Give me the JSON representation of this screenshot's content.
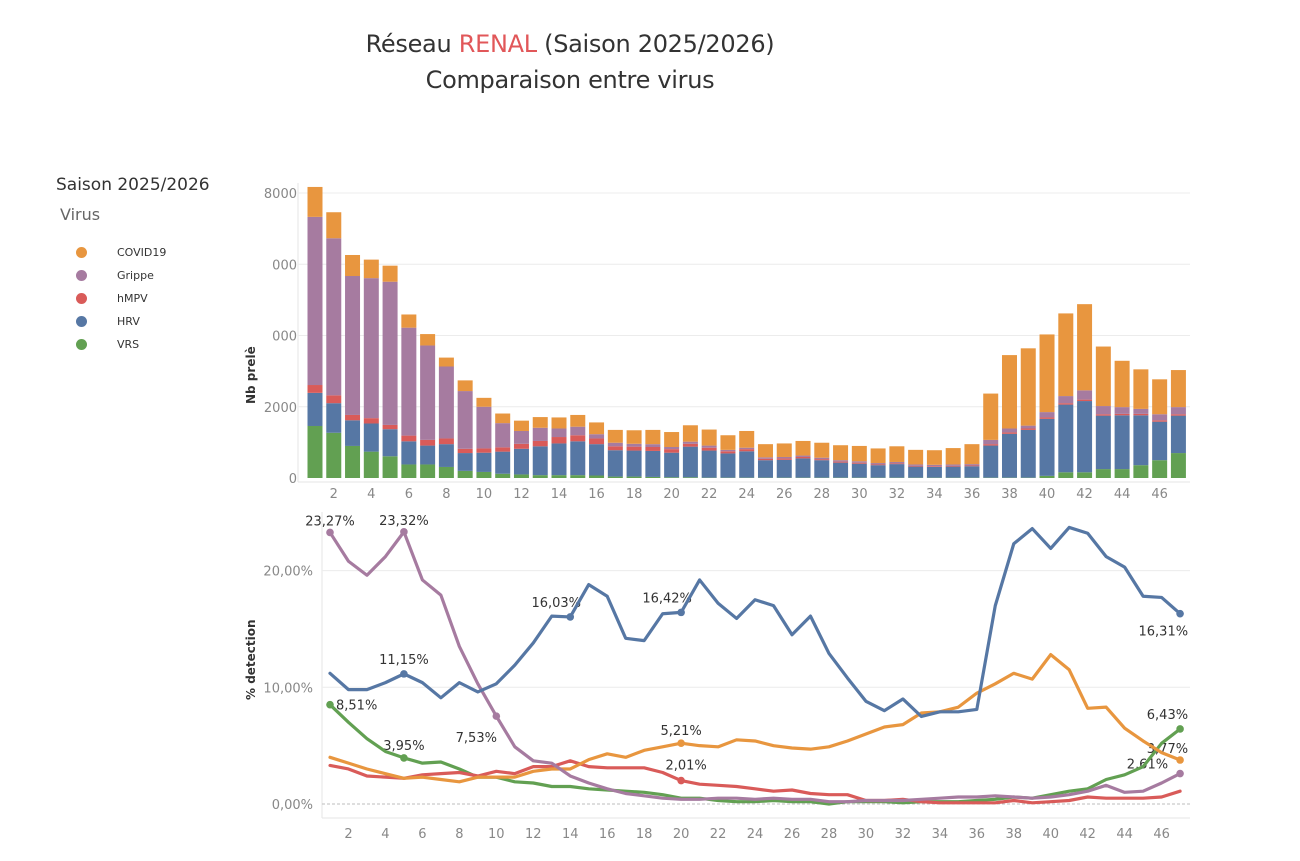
{
  "title": {
    "line1_prefix": "Réseau ",
    "line1_highlight": "RENAL",
    "line1_suffix": " (Saison 2025/2026)",
    "line2": "Comparaison entre virus",
    "highlight_color": "#e15759"
  },
  "legend": {
    "title": "Saison 2025/2026",
    "subtitle": "Virus",
    "items": [
      {
        "label": "COVID19",
        "color": "#e8963f"
      },
      {
        "label": "Grippe",
        "color": "#a67ba0"
      },
      {
        "label": "hMPV",
        "color": "#d95b59"
      },
      {
        "label": "HRV",
        "color": "#5677a4"
      },
      {
        "label": "VRS",
        "color": "#62a052"
      }
    ]
  },
  "chart_data": [
    {
      "type": "bar",
      "stacked": true,
      "ylabel": "Nb prelè",
      "xlabel": "",
      "ylim": [
        0,
        8000
      ],
      "yticks": [
        0,
        2000,
        4000,
        6000,
        8000
      ],
      "ytick_labels": [
        "0",
        "2000",
        "000",
        "000",
        "8000"
      ],
      "x": [
        1,
        2,
        3,
        4,
        5,
        6,
        7,
        8,
        9,
        10,
        11,
        12,
        13,
        14,
        15,
        16,
        17,
        18,
        19,
        20,
        21,
        22,
        23,
        24,
        25,
        26,
        27,
        28,
        29,
        30,
        31,
        32,
        33,
        34,
        35,
        36,
        37,
        38,
        39,
        40,
        41,
        42,
        43,
        44,
        45,
        46,
        47
      ],
      "xtick_labels": [
        "2",
        "4",
        "6",
        "8",
        "10",
        "12",
        "14",
        "16",
        "18",
        "20",
        "22",
        "24",
        "26",
        "28",
        "30",
        "32",
        "34",
        "36",
        "38",
        "40",
        "42",
        "44",
        "46"
      ],
      "grid": true,
      "series": [
        {
          "name": "VRS",
          "color": "#62a052",
          "values": [
            1460,
            1270,
            900,
            740,
            610,
            380,
            380,
            310,
            200,
            170,
            120,
            100,
            80,
            80,
            80,
            70,
            40,
            40,
            30,
            20,
            20,
            10,
            10,
            10,
            10,
            10,
            10,
            10,
            10,
            10,
            10,
            10,
            10,
            10,
            10,
            10,
            10,
            10,
            10,
            60,
            160,
            160,
            250,
            250,
            360,
            500,
            700
          ]
        },
        {
          "name": "HRV",
          "color": "#5677a4",
          "values": [
            930,
            830,
            720,
            790,
            760,
            650,
            530,
            640,
            500,
            540,
            620,
            720,
            810,
            890,
            950,
            880,
            740,
            730,
            730,
            690,
            860,
            760,
            680,
            740,
            490,
            500,
            540,
            490,
            420,
            390,
            350,
            380,
            310,
            300,
            310,
            320,
            900,
            1230,
            1340,
            1600,
            1900,
            2000,
            1500,
            1510,
            1400,
            1080,
            1050
          ]
        },
        {
          "name": "hMPV",
          "color": "#d95b59",
          "values": [
            220,
            220,
            150,
            150,
            120,
            160,
            160,
            160,
            120,
            120,
            120,
            140,
            150,
            180,
            170,
            160,
            110,
            110,
            110,
            100,
            80,
            80,
            60,
            60,
            40,
            40,
            40,
            30,
            30,
            30,
            20,
            20,
            20,
            20,
            20,
            20,
            40,
            40,
            40,
            40,
            40,
            40,
            40,
            40,
            40,
            40,
            40
          ]
        },
        {
          "name": "Grippe",
          "color": "#a67ba0",
          "values": [
            4720,
            4410,
            3900,
            3930,
            4020,
            3030,
            2650,
            2020,
            1620,
            1170,
            680,
            360,
            370,
            240,
            240,
            120,
            100,
            80,
            80,
            60,
            60,
            60,
            40,
            40,
            40,
            40,
            40,
            40,
            40,
            40,
            40,
            40,
            40,
            40,
            40,
            40,
            120,
            110,
            80,
            150,
            200,
            260,
            230,
            190,
            140,
            170,
            200
          ]
        },
        {
          "name": "COVID19",
          "color": "#e8963f",
          "values": [
            840,
            730,
            590,
            520,
            450,
            370,
            320,
            250,
            300,
            250,
            270,
            290,
            300,
            310,
            330,
            330,
            360,
            380,
            400,
            420,
            460,
            450,
            410,
            470,
            370,
            380,
            410,
            420,
            420,
            430,
            410,
            440,
            410,
            410,
            460,
            560,
            1300,
            2060,
            2170,
            2180,
            2320,
            2420,
            1670,
            1300,
            1110,
            980,
            1040
          ]
        }
      ]
    },
    {
      "type": "line",
      "ylabel": "% detection",
      "xlabel": "",
      "ylim": [
        0,
        24
      ],
      "yticks": [
        0,
        10,
        20
      ],
      "ytick_labels": [
        "0,00%",
        "10,00%",
        "20,00%"
      ],
      "x": [
        1,
        2,
        3,
        4,
        5,
        6,
        7,
        8,
        9,
        10,
        11,
        12,
        13,
        14,
        15,
        16,
        17,
        18,
        19,
        20,
        21,
        22,
        23,
        24,
        25,
        26,
        27,
        28,
        29,
        30,
        31,
        32,
        33,
        34,
        35,
        36,
        37,
        38,
        39,
        40,
        41,
        42,
        43,
        44,
        45,
        46,
        47
      ],
      "xtick_labels": [
        "2",
        "4",
        "6",
        "8",
        "10",
        "12",
        "14",
        "16",
        "18",
        "20",
        "22",
        "24",
        "26",
        "28",
        "30",
        "32",
        "34",
        "36",
        "38",
        "40",
        "42",
        "44",
        "46"
      ],
      "grid": true,
      "reference_line": 0,
      "series": [
        {
          "name": "HRV",
          "color": "#5677a4",
          "values": [
            11.2,
            9.8,
            9.8,
            10.4,
            11.15,
            10.4,
            9.1,
            10.4,
            9.6,
            10.3,
            11.9,
            13.8,
            16.1,
            16.03,
            18.8,
            17.8,
            14.2,
            14.0,
            16.3,
            16.42,
            19.2,
            17.2,
            15.9,
            17.5,
            17.0,
            14.5,
            16.1,
            12.9,
            10.8,
            8.8,
            8.0,
            9.0,
            7.5,
            7.9,
            7.9,
            8.1,
            17.0,
            22.3,
            23.6,
            21.9,
            23.7,
            23.2,
            21.2,
            20.3,
            17.8,
            17.7,
            16.31
          ],
          "labels": [
            {
              "week": 5,
              "text": "11,15%"
            },
            {
              "week": 14,
              "text": "16,03%"
            },
            {
              "week": 20,
              "text": "16,42%"
            },
            {
              "week": 47,
              "text": "16,31%"
            }
          ]
        },
        {
          "name": "Grippe",
          "color": "#a67ba0",
          "values": [
            23.27,
            20.8,
            19.6,
            21.2,
            23.32,
            19.2,
            17.9,
            13.5,
            10.3,
            7.53,
            4.9,
            3.7,
            3.5,
            2.4,
            1.8,
            1.3,
            0.9,
            0.7,
            0.5,
            0.4,
            0.4,
            0.5,
            0.5,
            0.4,
            0.5,
            0.4,
            0.4,
            0.2,
            0.2,
            0.3,
            0.3,
            0.3,
            0.4,
            0.5,
            0.6,
            0.6,
            0.7,
            0.6,
            0.5,
            0.6,
            0.8,
            1.1,
            1.6,
            1.0,
            1.1,
            1.8,
            2.61
          ],
          "labels": [
            {
              "week": 1,
              "text": "23,27%"
            },
            {
              "week": 5,
              "text": "23,32%"
            },
            {
              "week": 10,
              "text": "7,53%"
            },
            {
              "week": 47,
              "text": "2,61%"
            }
          ]
        },
        {
          "name": "COVID19",
          "color": "#e8963f",
          "values": [
            4.0,
            3.5,
            3.0,
            2.6,
            2.2,
            2.3,
            2.1,
            1.9,
            2.3,
            2.3,
            2.3,
            2.8,
            3.0,
            3.0,
            3.8,
            4.3,
            4.0,
            4.6,
            4.9,
            5.21,
            5.0,
            4.9,
            5.5,
            5.4,
            5.0,
            4.8,
            4.7,
            4.9,
            5.4,
            6.0,
            6.6,
            6.8,
            7.8,
            7.9,
            8.3,
            9.5,
            10.3,
            11.2,
            10.7,
            12.8,
            11.5,
            8.2,
            8.3,
            6.5,
            5.4,
            4.4,
            3.77
          ],
          "labels": [
            {
              "week": 20,
              "text": "5,21%"
            },
            {
              "week": 47,
              "text": "3,77%"
            }
          ]
        },
        {
          "name": "hMPV",
          "color": "#d95b59",
          "values": [
            3.3,
            3.0,
            2.4,
            2.3,
            2.2,
            2.5,
            2.6,
            2.7,
            2.4,
            2.8,
            2.6,
            3.2,
            3.2,
            3.7,
            3.2,
            3.1,
            3.1,
            3.1,
            2.7,
            2.01,
            1.7,
            1.6,
            1.5,
            1.3,
            1.1,
            1.2,
            0.9,
            0.8,
            0.8,
            0.3,
            0.3,
            0.4,
            0.2,
            0.1,
            0.1,
            0.1,
            0.1,
            0.3,
            0.1,
            0.2,
            0.3,
            0.6,
            0.5,
            0.5,
            0.5,
            0.6,
            1.1
          ],
          "labels": [
            {
              "week": 20,
              "text": "2,01%"
            }
          ]
        },
        {
          "name": "VRS",
          "color": "#62a052",
          "values": [
            8.51,
            7.0,
            5.6,
            4.5,
            3.95,
            3.5,
            3.6,
            3.0,
            2.3,
            2.3,
            1.9,
            1.8,
            1.5,
            1.5,
            1.3,
            1.2,
            1.1,
            1.0,
            0.8,
            0.5,
            0.5,
            0.3,
            0.2,
            0.2,
            0.3,
            0.2,
            0.2,
            0.0,
            0.2,
            0.2,
            0.2,
            0.1,
            0.2,
            0.2,
            0.2,
            0.3,
            0.4,
            0.6,
            0.5,
            0.8,
            1.1,
            1.3,
            2.1,
            2.5,
            3.2,
            5.2,
            6.43
          ],
          "labels": [
            {
              "week": 1,
              "text": "8,51%"
            },
            {
              "week": 5,
              "text": "3,95%"
            },
            {
              "week": 47,
              "text": "6,43%"
            }
          ]
        }
      ]
    }
  ]
}
